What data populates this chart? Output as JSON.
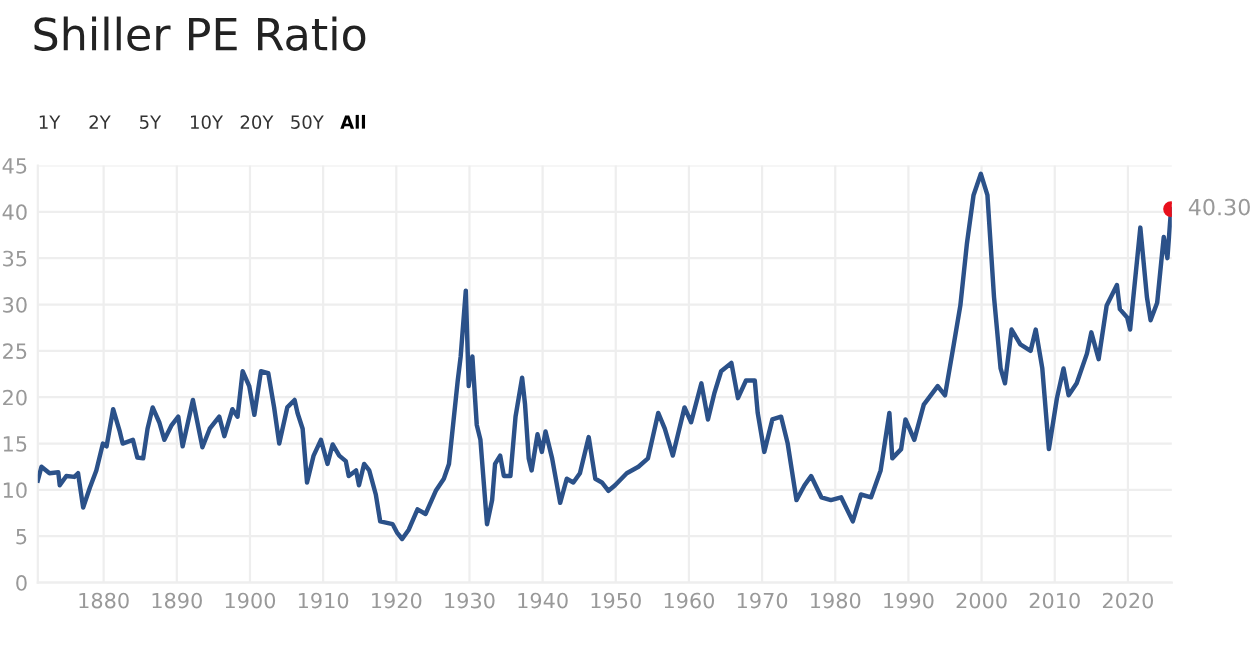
{
  "chart_data": {
    "type": "line",
    "title": "Shiller PE Ratio",
    "annotations": [
      "1Y",
      "2Y",
      "5Y",
      "10Y",
      "20Y",
      "50Y",
      "All"
    ],
    "xlim": [
      1871,
      2026
    ],
    "xticks": [
      1880,
      1890,
      1900,
      1910,
      1920,
      1930,
      1940,
      1950,
      1960,
      1970,
      1980,
      1990,
      2000,
      2010,
      2020
    ],
    "ylim": [
      0,
      45
    ],
    "yticks": [
      0,
      5,
      10,
      15,
      20,
      25,
      30,
      35,
      40,
      45
    ],
    "grid": true,
    "legend": false,
    "marker": "none",
    "line_style": "solid",
    "series": [
      {
        "color": "#2b5189",
        "x": [
          1871,
          1871.5,
          1872.6,
          1873.8,
          1874,
          1874.9,
          1876,
          1876.5,
          1877.2,
          1878.1,
          1879,
          1879.9,
          1880.4,
          1881.3,
          1882.2,
          1882.6,
          1884,
          1884.6,
          1885.4,
          1886,
          1886.7,
          1887.6,
          1888.3,
          1889.3,
          1890.2,
          1890.8,
          1892.2,
          1893.5,
          1894.5,
          1895.8,
          1896.5,
          1897.6,
          1898.3,
          1899,
          1899.9,
          1900.6,
          1901.5,
          1902.5,
          1903.3,
          1904,
          1905.1,
          1906.1,
          1906.5,
          1907.2,
          1907.8,
          1908.7,
          1909.7,
          1910.6,
          1911.3,
          1912.2,
          1913.1,
          1913.5,
          1914.5,
          1914.9,
          1915.6,
          1916.3,
          1917.2,
          1917.8,
          1919.5,
          1920.1,
          1920.8,
          1921.7,
          1922.9,
          1924,
          1925.4,
          1926.5,
          1927.2,
          1928.4,
          1928.8,
          1929.5,
          1929.9,
          1930.4,
          1931,
          1931.5,
          1932.4,
          1933.1,
          1933.5,
          1934.2,
          1934.7,
          1935.6,
          1936.3,
          1937.2,
          1937.6,
          1938.1,
          1938.5,
          1939.3,
          1939.9,
          1940.4,
          1941.3,
          1942.4,
          1943.3,
          1944.2,
          1945.1,
          1946.3,
          1947.2,
          1948.1,
          1949,
          1949.9,
          1951.5,
          1953.1,
          1954.4,
          1955.8,
          1956.7,
          1957.8,
          1959.4,
          1960.3,
          1961.7,
          1962.6,
          1963.5,
          1964.4,
          1965.8,
          1966.7,
          1967.8,
          1969,
          1969.4,
          1970.3,
          1971.4,
          1972.6,
          1973.5,
          1974.7,
          1975.8,
          1976.7,
          1978.1,
          1979.4,
          1980.8,
          1982.4,
          1983.5,
          1984.9,
          1986.2,
          1987.4,
          1987.8,
          1989,
          1989.6,
          1990.8,
          1992.1,
          1994,
          1995,
          1996.2,
          1997.1,
          1998,
          1998.9,
          1999.9,
          2000.8,
          2001.7,
          2002.6,
          2003.2,
          2004.1,
          2005.3,
          2006.7,
          2007.4,
          2008.3,
          2009.2,
          2010.3,
          2011.2,
          2011.9,
          2013,
          2014.4,
          2015,
          2016,
          2017.1,
          2018.5,
          2018.9,
          2019.9,
          2020.3,
          2021.7,
          2022.6,
          2023.1,
          2024,
          2024.9,
          2025.4,
          2025.9
        ],
        "values": [
          11.0,
          12.5,
          11.8,
          11.9,
          10.5,
          11.5,
          11.4,
          11.8,
          8.1,
          10.2,
          12.1,
          15.0,
          14.7,
          18.7,
          16.3,
          15.0,
          15.4,
          13.5,
          13.4,
          16.6,
          18.9,
          17.3,
          15.4,
          17.0,
          17.9,
          14.7,
          19.7,
          14.6,
          16.6,
          17.9,
          15.8,
          18.7,
          17.9,
          22.8,
          21.2,
          18.1,
          22.8,
          22.6,
          18.9,
          15.0,
          18.9,
          19.7,
          18.3,
          16.6,
          10.8,
          13.7,
          15.4,
          12.8,
          14.9,
          13.7,
          13.1,
          11.5,
          12.1,
          10.5,
          12.8,
          12.1,
          9.5,
          6.6,
          6.3,
          5.4,
          4.7,
          5.7,
          7.9,
          7.4,
          9.9,
          11.2,
          12.8,
          21.8,
          24.4,
          31.5,
          21.2,
          24.4,
          17.0,
          15.4,
          6.3,
          8.9,
          12.8,
          13.7,
          11.5,
          11.5,
          17.9,
          22.1,
          19.2,
          13.4,
          12.1,
          16.0,
          14.1,
          16.3,
          13.4,
          8.6,
          11.2,
          10.8,
          11.8,
          15.7,
          11.2,
          10.8,
          9.9,
          10.5,
          11.8,
          12.5,
          13.4,
          18.3,
          16.6,
          13.7,
          18.9,
          17.3,
          21.5,
          17.6,
          20.5,
          22.8,
          23.7,
          19.9,
          21.8,
          21.8,
          18.3,
          14.1,
          17.6,
          17.9,
          15.0,
          8.9,
          10.5,
          11.5,
          9.2,
          8.9,
          9.2,
          6.6,
          9.5,
          9.2,
          12.1,
          18.3,
          13.4,
          14.4,
          17.6,
          15.4,
          19.2,
          21.2,
          20.2,
          25.7,
          29.9,
          36.6,
          41.8,
          44.1,
          41.8,
          30.8,
          23.1,
          21.5,
          27.3,
          25.7,
          25.0,
          27.3,
          23.1,
          14.4,
          19.9,
          23.1,
          20.2,
          21.5,
          24.7,
          27.0,
          24.1,
          29.9,
          32.1,
          29.5,
          28.6,
          27.3,
          38.3,
          30.8,
          28.3,
          30.2,
          37.3,
          35.0,
          40.3
        ]
      },
      {
        "type": "scatter",
        "color": "#e8101c",
        "marker": "circle",
        "x": [
          2025.9
        ],
        "values": [
          40.3
        ],
        "value_labels": [
          "40.30"
        ]
      }
    ]
  }
}
